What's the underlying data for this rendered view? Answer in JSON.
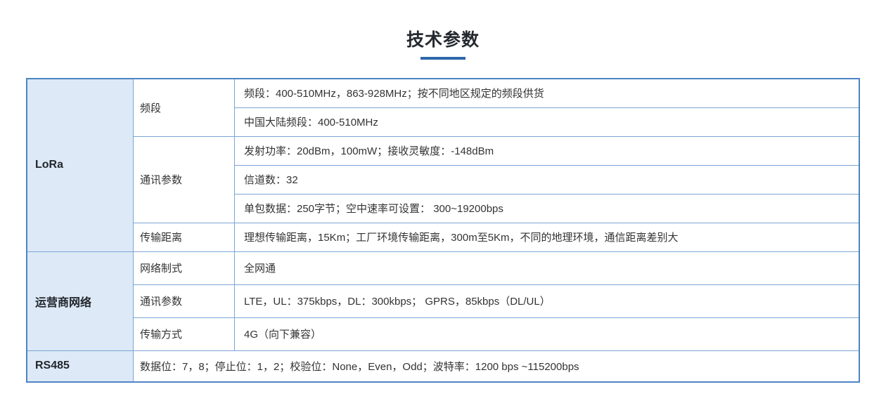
{
  "page": {
    "title": "技术参数"
  },
  "colors": {
    "title_text": "#24292f",
    "title_underline": "#2e68ab",
    "table_outer_border": "#4d84c4",
    "table_inner_border": "#7aa5d6",
    "group_cell_background": "#dde9f6",
    "body_text": "#333333"
  },
  "table": {
    "sections": [
      {
        "label": "LoRa",
        "params": [
          {
            "name": "频段",
            "values": [
              "频段：400-510MHz，863-928MHz；按不同地区规定的频段供货",
              "中国大陆频段：400-510MHz"
            ]
          },
          {
            "name": "通讯参数",
            "values": [
              "发射功率：20dBm，100mW；接收灵敏度：-148dBm",
              "信道数：32",
              "单包数据：250字节；空中速率可设置： 300~19200bps"
            ]
          },
          {
            "name": "传输距离",
            "values": [
              "理想传输距离，15Km；工厂环境传输距离，300m至5Km，不同的地理环境，通信距离差别大"
            ]
          }
        ]
      },
      {
        "label": "运营商网络",
        "params": [
          {
            "name": "网络制式",
            "values": [
              "全网通"
            ]
          },
          {
            "name": "通讯参数",
            "values": [
              "LTE，UL：375kbps，DL：300kbps； GPRS，85kbps（DL/UL）"
            ]
          },
          {
            "name": "传输方式",
            "values": [
              "4G（向下兼容）"
            ]
          }
        ]
      },
      {
        "label": "RS485",
        "params": [
          {
            "name": "",
            "values": [
              "数据位：7，8；停止位：1，2；校验位：None，Even，Odd；波特率：1200 bps ~115200bps"
            ]
          }
        ]
      }
    ]
  }
}
